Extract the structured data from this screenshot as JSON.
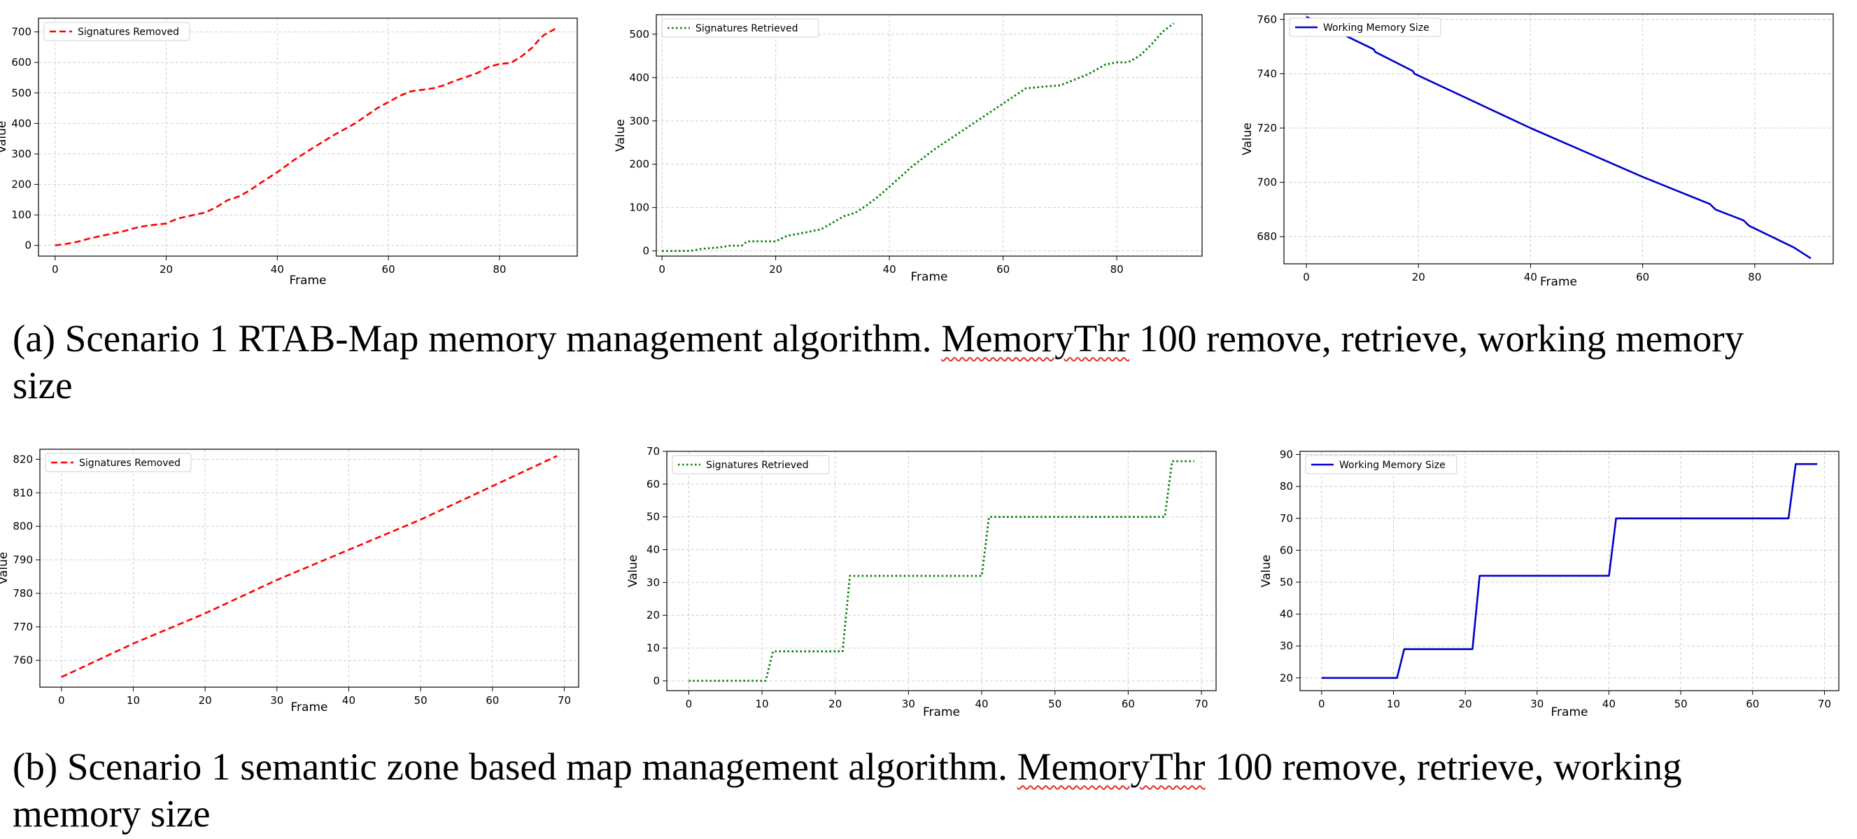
{
  "captions": {
    "a": {
      "before": "(a) Scenario 1 RTAB-Map memory management algorithm. ",
      "flagged": "MemoryThr",
      "after": " 100 remove, retrieve, working memory size"
    },
    "b": {
      "before": "(b) Scenario 1 semantic zone based map management algorithm. ",
      "flagged": "MemoryThr",
      "after": " 100 remove, retrieve, working memory size"
    }
  },
  "chart_data": [
    {
      "id": "a1",
      "type": "line",
      "xlabel": "Frame",
      "ylabel": "Value",
      "xlim": [
        -3,
        94
      ],
      "ylim": [
        -35,
        745
      ],
      "xticks": [
        0,
        20,
        40,
        60,
        80
      ],
      "yticks": [
        0,
        100,
        200,
        300,
        400,
        500,
        600,
        700
      ],
      "grid": true,
      "legend": "top-left",
      "series": [
        {
          "name": "Signatures Removed",
          "color": "#ff0000",
          "style": "dashed",
          "x": [
            0,
            2,
            4,
            6,
            8,
            10,
            12,
            14,
            15,
            17,
            20,
            22,
            24,
            27,
            29,
            31,
            33,
            35,
            37,
            40,
            43,
            46,
            50,
            54,
            58,
            62,
            64,
            66,
            68,
            70,
            72,
            74,
            76,
            78,
            80,
            82,
            84,
            86,
            87,
            88,
            90
          ],
          "y": [
            0,
            5,
            12,
            22,
            30,
            38,
            45,
            55,
            60,
            66,
            72,
            88,
            96,
            108,
            125,
            148,
            160,
            180,
            205,
            240,
            280,
            315,
            360,
            400,
            450,
            490,
            505,
            510,
            515,
            525,
            540,
            552,
            565,
            585,
            595,
            598,
            620,
            650,
            672,
            690,
            710
          ]
        }
      ]
    },
    {
      "id": "a2",
      "type": "line",
      "xlabel": "Frame",
      "ylabel": "Value",
      "xlim": [
        -1,
        95
      ],
      "ylim": [
        -12,
        545
      ],
      "xticks": [
        0,
        20,
        40,
        60,
        80
      ],
      "yticks": [
        0,
        100,
        200,
        300,
        400,
        500
      ],
      "grid": true,
      "legend": "top-left",
      "series": [
        {
          "name": "Signatures Retrieved",
          "color": "#008000",
          "style": "dotted",
          "x": [
            0,
            5,
            7,
            10,
            12,
            14,
            15,
            20,
            22,
            25,
            28,
            30,
            32,
            34,
            36,
            38,
            40,
            44,
            48,
            52,
            56,
            60,
            64,
            68,
            70,
            72,
            75,
            78,
            80,
            82,
            84,
            86,
            88,
            90
          ],
          "y": [
            0,
            0,
            5,
            8,
            12,
            12,
            22,
            22,
            35,
            42,
            50,
            65,
            80,
            88,
            105,
            125,
            148,
            195,
            235,
            270,
            305,
            340,
            375,
            380,
            382,
            392,
            408,
            430,
            435,
            435,
            450,
            475,
            505,
            525
          ]
        }
      ]
    },
    {
      "id": "a3",
      "type": "line",
      "xlabel": "Frame",
      "ylabel": "Value",
      "xlim": [
        -4,
        94
      ],
      "ylim": [
        670,
        762
      ],
      "xticks": [
        0,
        20,
        40,
        60,
        80
      ],
      "yticks": [
        680,
        700,
        720,
        740,
        760
      ],
      "grid": true,
      "legend": "top-left",
      "series": [
        {
          "name": "Working Memory Size",
          "color": "#0000cc",
          "style": "solid",
          "x": [
            0,
            3,
            5,
            6,
            10,
            12,
            12.3,
            19,
            19.3,
            40,
            60,
            66,
            72,
            73,
            78,
            79,
            86,
            87,
            90
          ],
          "y": [
            761,
            758,
            757,
            755,
            751,
            749,
            748,
            741,
            740,
            720,
            702,
            697,
            692,
            690,
            686,
            684,
            677,
            676,
            672
          ]
        }
      ]
    },
    {
      "id": "b1",
      "type": "line",
      "xlabel": "Frame",
      "ylabel": "Value",
      "xlim": [
        -3,
        72
      ],
      "ylim": [
        752,
        823
      ],
      "xticks": [
        0,
        10,
        20,
        30,
        40,
        50,
        60,
        70
      ],
      "yticks": [
        760,
        770,
        780,
        790,
        800,
        810,
        820
      ],
      "grid": true,
      "legend": "top-left",
      "series": [
        {
          "name": "Signatures Removed",
          "color": "#ff0000",
          "style": "dashed",
          "x": [
            0,
            10,
            20,
            30,
            40,
            50,
            60,
            69
          ],
          "y": [
            755,
            765,
            774,
            784,
            793,
            802,
            812,
            821
          ]
        }
      ]
    },
    {
      "id": "b2",
      "type": "line",
      "xlabel": "Frame",
      "ylabel": "Value",
      "xlim": [
        -3,
        72
      ],
      "ylim": [
        -3,
        70
      ],
      "xticks": [
        0,
        10,
        20,
        30,
        40,
        50,
        60,
        70
      ],
      "yticks": [
        0,
        10,
        20,
        30,
        40,
        50,
        60,
        70
      ],
      "grid": true,
      "legend": "top-left",
      "series": [
        {
          "name": "Signatures Retrieved",
          "color": "#008000",
          "style": "dotted",
          "x": [
            0,
            10.5,
            11.5,
            21,
            22,
            40,
            41,
            65,
            66,
            69
          ],
          "y": [
            0,
            0,
            9,
            9,
            32,
            32,
            50,
            50,
            67,
            67
          ]
        }
      ]
    },
    {
      "id": "b3",
      "type": "line",
      "xlabel": "Frame",
      "ylabel": "Value",
      "xlim": [
        -3,
        72
      ],
      "ylim": [
        16,
        91
      ],
      "xticks": [
        0,
        10,
        20,
        30,
        40,
        50,
        60,
        70
      ],
      "yticks": [
        20,
        30,
        40,
        50,
        60,
        70,
        80,
        90
      ],
      "grid": true,
      "legend": "top-left",
      "series": [
        {
          "name": "Working Memory Size",
          "color": "#0000cc",
          "style": "solid",
          "x": [
            0,
            10.5,
            11.5,
            21,
            22,
            40,
            41,
            65,
            66,
            69
          ],
          "y": [
            20,
            20,
            29,
            29,
            52,
            52,
            70,
            70,
            87,
            87
          ]
        }
      ]
    }
  ]
}
